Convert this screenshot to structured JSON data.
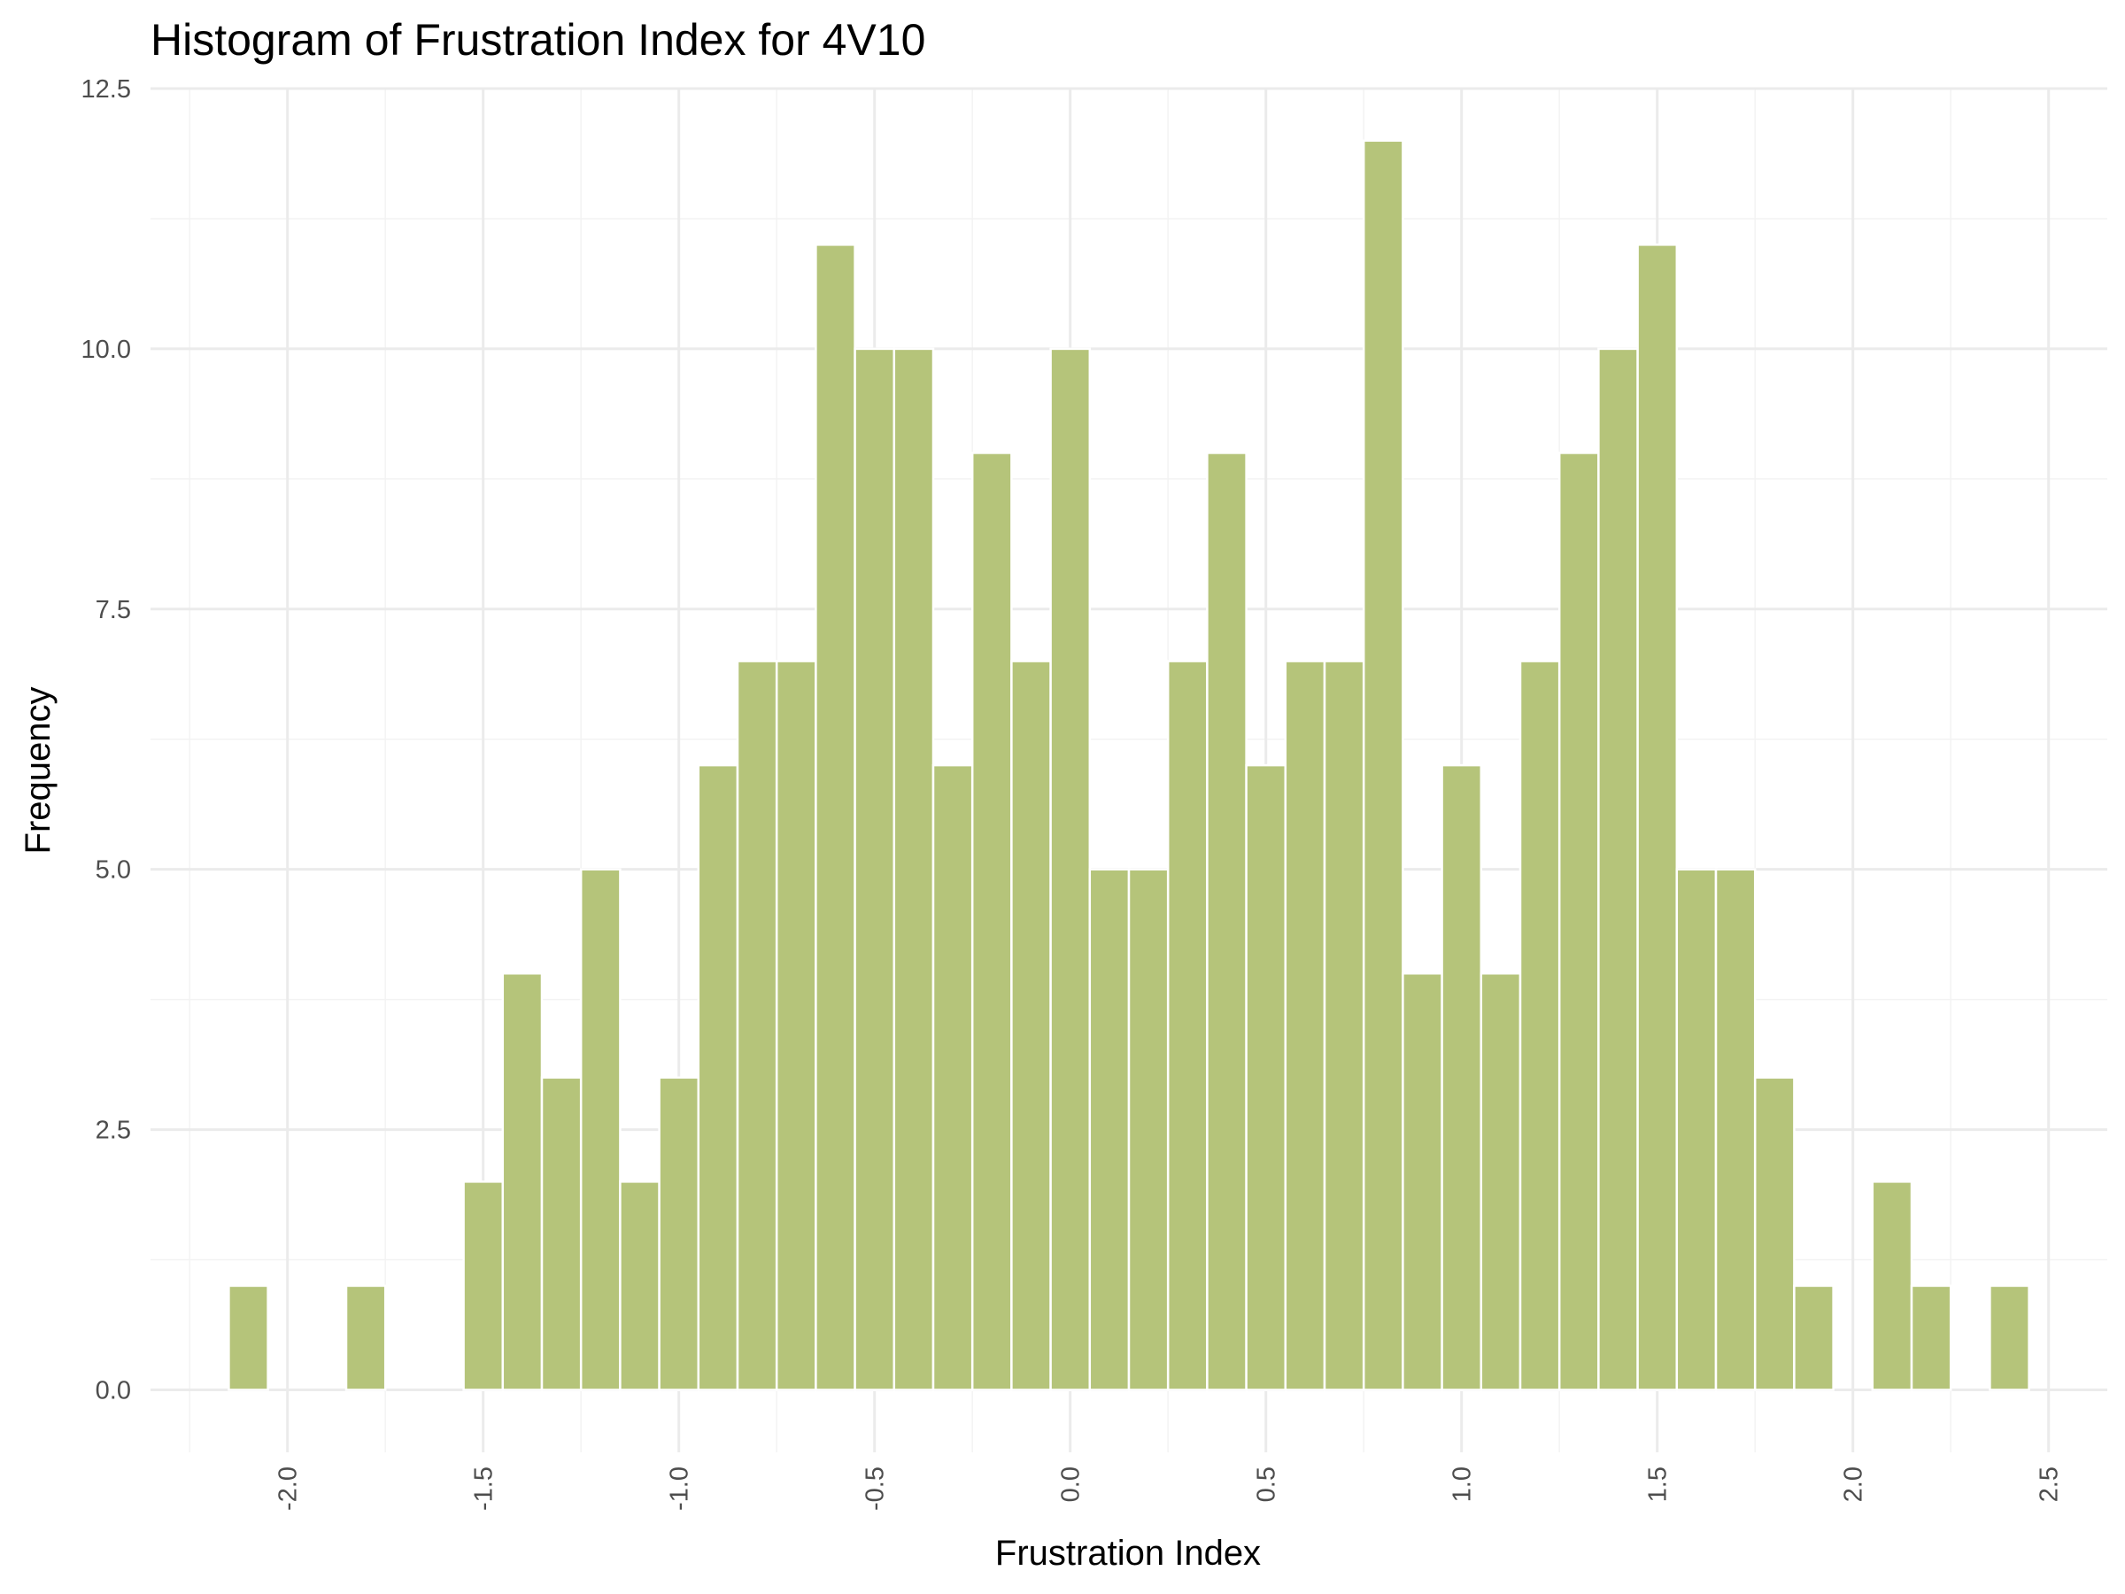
{
  "chart_data": {
    "type": "bar",
    "title": "Histogram of Frustration Index for 4V10",
    "xlabel": "Frustration Index",
    "ylabel": "Frequency",
    "bin_width": 0.1,
    "bin_centers": [
      -2.1,
      -2.0,
      -1.9,
      -1.8,
      -1.7,
      -1.6,
      -1.5,
      -1.4,
      -1.3,
      -1.2,
      -1.1,
      -1.0,
      -0.9,
      -0.8,
      -0.7,
      -0.6,
      -0.5,
      -0.4,
      -0.3,
      -0.2,
      -0.1,
      0.0,
      0.1,
      0.2,
      0.3,
      0.4,
      0.5,
      0.6,
      0.7,
      0.8,
      0.9,
      1.0,
      1.1,
      1.2,
      1.3,
      1.4,
      1.5,
      1.6,
      1.7,
      1.8,
      1.9,
      2.0,
      2.1,
      2.2,
      2.3,
      2.4
    ],
    "values": [
      1,
      0,
      0,
      1,
      0,
      0,
      2,
      4,
      3,
      5,
      2,
      3,
      6,
      7,
      7,
      11,
      10,
      10,
      6,
      9,
      7,
      10,
      5,
      5,
      7,
      9,
      6,
      7,
      7,
      12,
      4,
      6,
      4,
      7,
      9,
      10,
      11,
      5,
      5,
      3,
      1,
      0,
      2,
      1,
      0,
      1
    ],
    "xlim": [
      -2.35,
      2.65
    ],
    "ylim": [
      -0.6,
      12.5
    ],
    "x_ticks": [
      -2.0,
      -1.5,
      -1.0,
      -0.5,
      0.0,
      0.5,
      1.0,
      1.5,
      2.0,
      2.5
    ],
    "x_tick_labels": [
      "-2.0",
      "-1.5",
      "-1.0",
      "-0.5",
      "0.0",
      "0.5",
      "1.0",
      "1.5",
      "2.0",
      "2.5"
    ],
    "y_ticks": [
      0.0,
      2.5,
      5.0,
      7.5,
      10.0,
      12.5
    ],
    "y_tick_labels": [
      "0.0",
      "2.5",
      "5.0",
      "7.5",
      "10.0",
      "12.5"
    ],
    "bar_color": "#b5c47a",
    "grid": true,
    "legend": "none"
  }
}
